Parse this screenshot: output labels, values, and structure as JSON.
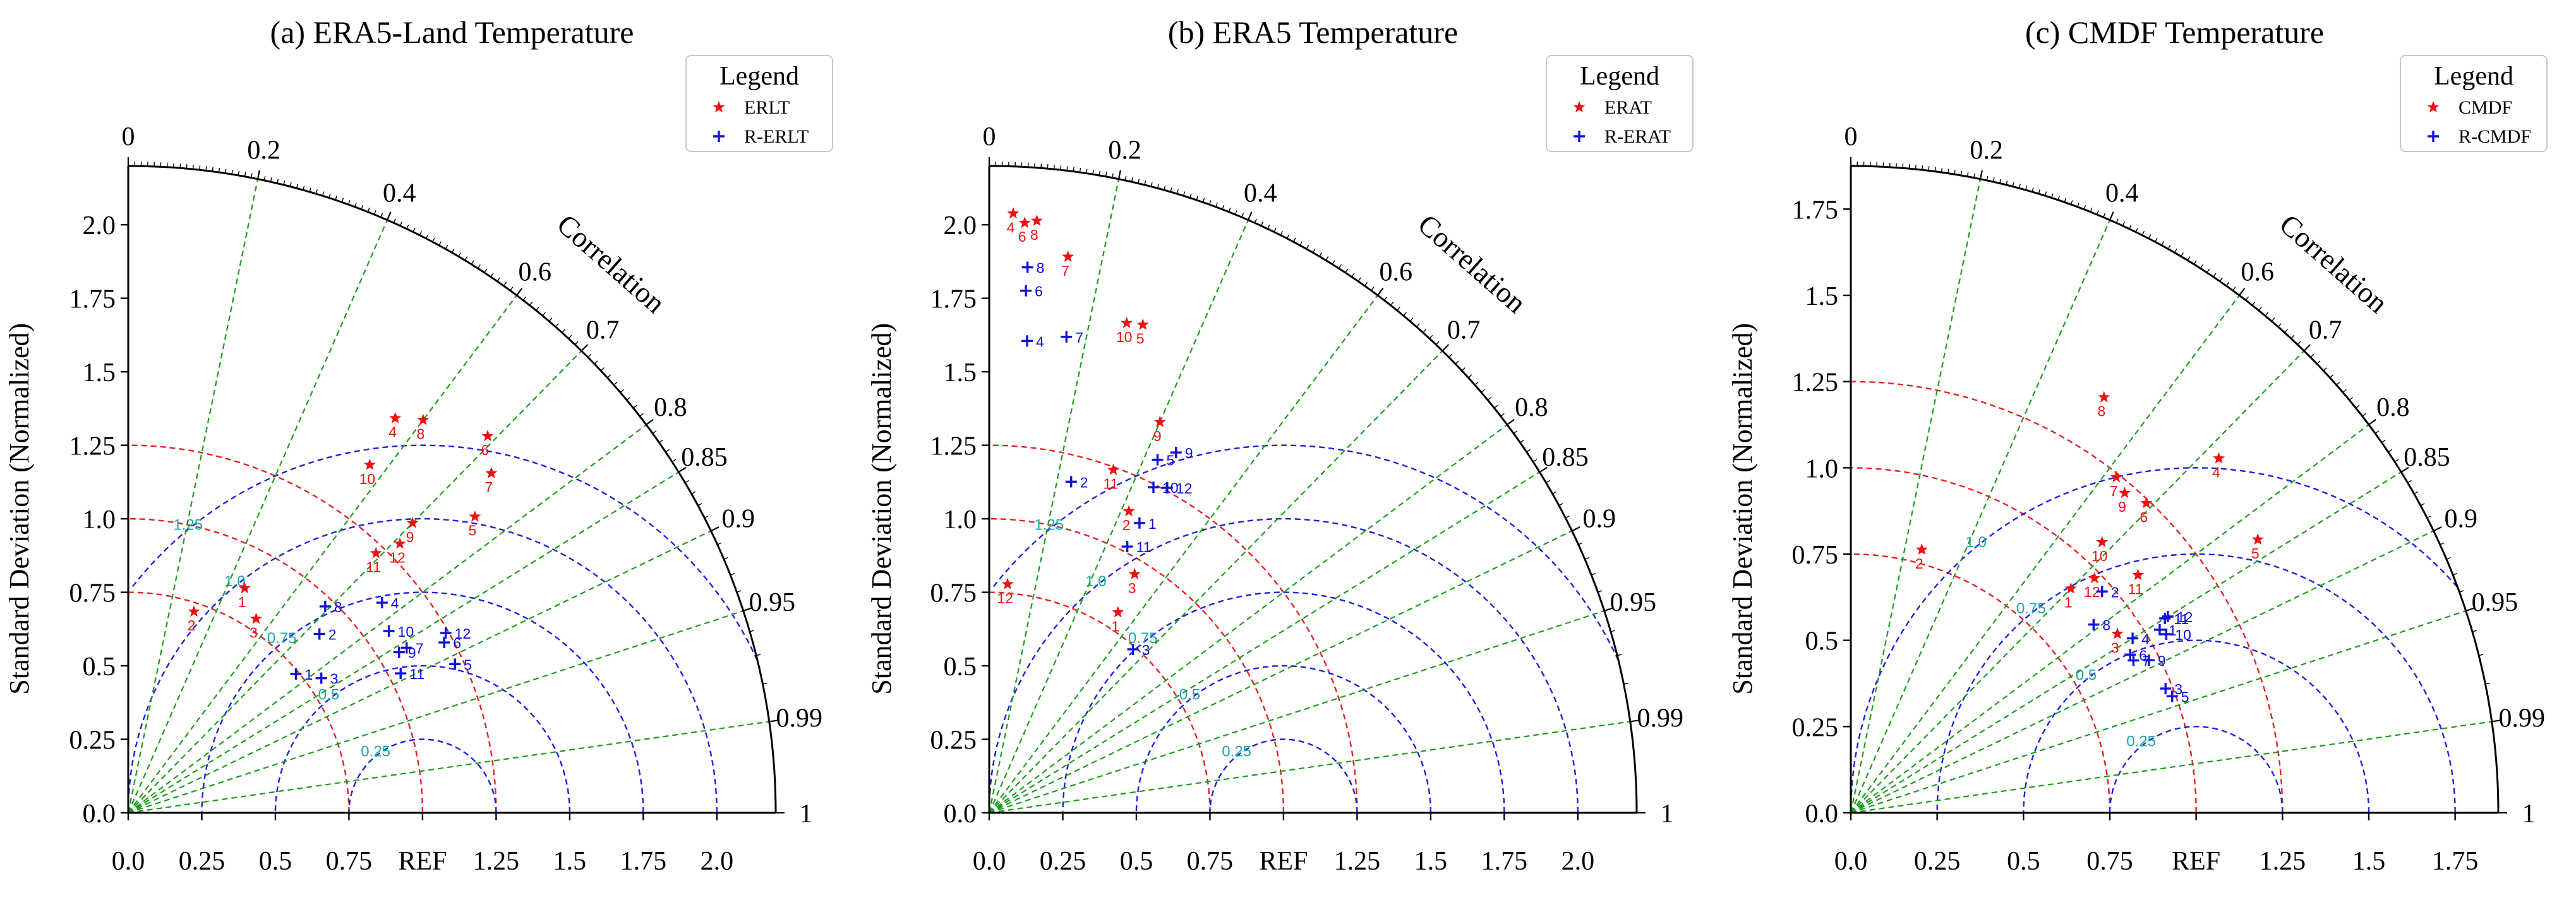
{
  "colors": {
    "axis": "#000000",
    "corr_line": "#1a9e1a",
    "std_arc": "#e52222",
    "rmsd_arc": "#1f1fe0",
    "rmsd_label": "#1aa8a8",
    "obs_marker": "#ee1111",
    "rev_marker": "#1010dd"
  },
  "chart_data": [
    {
      "type": "taylor",
      "title": "(a) ERA5-Land Temperature",
      "ylabel": "Standard Deviation (Normalized)",
      "corr_label": "Correlation",
      "xlim": [
        0,
        2.2
      ],
      "std_ticks": [
        "0.0",
        "0.25",
        "0.5",
        "0.75",
        "1.0",
        "1.25",
        "1.5",
        "1.75",
        "2.0"
      ],
      "x_ticks": [
        "0.0",
        "0.25",
        "0.5",
        "0.75",
        "REF",
        "1.25",
        "1.5",
        "1.75",
        "2.0"
      ],
      "corr_ticks": [
        "0",
        "0.2",
        "0.4",
        "0.6",
        "0.7",
        "0.8",
        "0.85",
        "0.9",
        "0.95",
        "0.99",
        "1"
      ],
      "std_arcs": [
        0.75,
        1.0,
        1.25
      ],
      "rmsd_levels": [
        0.25,
        0.5,
        0.75,
        1.0,
        1.25
      ],
      "rmsd_labels": [
        "0.25",
        "0.5",
        "0.75",
        "1.0",
        "1.25"
      ],
      "legend": {
        "title": "Legend",
        "items": [
          "ERLT",
          "R-ERLT"
        ]
      },
      "series": [
        {
          "name": "ERLT",
          "marker": "star",
          "points": [
            {
              "label": "1",
              "std": 0.86,
              "corr": 0.46
            },
            {
              "label": "2",
              "std": 0.72,
              "corr": 0.31
            },
            {
              "label": "3",
              "std": 0.79,
              "corr": 0.55
            },
            {
              "label": "4",
              "std": 1.62,
              "corr": 0.56
            },
            {
              "label": "5",
              "std": 1.55,
              "corr": 0.76
            },
            {
              "label": "6",
              "std": 1.77,
              "corr": 0.69
            },
            {
              "label": "7",
              "std": 1.69,
              "corr": 0.73
            },
            {
              "label": "8",
              "std": 1.67,
              "corr": 0.6
            },
            {
              "label": "9",
              "std": 1.38,
              "corr": 0.7
            },
            {
              "label": "10",
              "std": 1.44,
              "corr": 0.57
            },
            {
              "label": "11",
              "std": 1.22,
              "corr": 0.69
            },
            {
              "label": "12",
              "std": 1.3,
              "corr": 0.71
            }
          ]
        },
        {
          "name": "R-ERLT",
          "marker": "plus",
          "points": [
            {
              "label": "1",
              "std": 0.74,
              "corr": 0.77
            },
            {
              "label": "2",
              "std": 0.89,
              "corr": 0.73
            },
            {
              "label": "3",
              "std": 0.8,
              "corr": 0.82
            },
            {
              "label": "4",
              "std": 1.12,
              "corr": 0.77
            },
            {
              "label": "5",
              "std": 1.22,
              "corr": 0.91
            },
            {
              "label": "6",
              "std": 1.22,
              "corr": 0.88
            },
            {
              "label": "7",
              "std": 1.1,
              "corr": 0.86
            },
            {
              "label": "8",
              "std": 0.97,
              "corr": 0.69
            },
            {
              "label": "9",
              "std": 1.07,
              "corr": 0.86
            },
            {
              "label": "10",
              "std": 1.08,
              "corr": 0.82
            },
            {
              "label": "11",
              "std": 1.04,
              "corr": 0.89
            },
            {
              "label": "12",
              "std": 1.24,
              "corr": 0.87
            }
          ]
        }
      ]
    },
    {
      "type": "taylor",
      "title": "(b) ERA5 Temperature",
      "ylabel": "Standard Deviation (Normalized)",
      "corr_label": "Correlation",
      "xlim": [
        0,
        2.2
      ],
      "std_ticks": [
        "0.0",
        "0.25",
        "0.5",
        "0.75",
        "1.0",
        "1.25",
        "1.5",
        "1.75",
        "2.0"
      ],
      "x_ticks": [
        "0.0",
        "0.25",
        "0.5",
        "0.75",
        "REF",
        "1.25",
        "1.5",
        "1.75",
        "2.0"
      ],
      "corr_ticks": [
        "0",
        "0.2",
        "0.4",
        "0.6",
        "0.7",
        "0.8",
        "0.85",
        "0.9",
        "0.95",
        "0.99",
        "1"
      ],
      "std_arcs": [
        0.75,
        1.0,
        1.25
      ],
      "rmsd_levels": [
        0.25,
        0.5,
        0.75,
        1.0,
        1.25
      ],
      "rmsd_labels": [
        "0.25",
        "0.5",
        "0.75",
        "1.0",
        "1.25"
      ],
      "legend": {
        "title": "Legend",
        "items": [
          "ERAT",
          "R-ERAT"
        ]
      },
      "series": [
        {
          "name": "ERAT",
          "marker": "star",
          "points": [
            {
              "label": "1",
              "std": 0.81,
              "corr": 0.54
            },
            {
              "label": "2",
              "std": 1.13,
              "corr": 0.42
            },
            {
              "label": "3",
              "std": 0.95,
              "corr": 0.52
            },
            {
              "label": "4",
              "std": 2.04,
              "corr": 0.04
            },
            {
              "label": "5",
              "std": 1.74,
              "corr": 0.3
            },
            {
              "label": "6",
              "std": 2.01,
              "corr": 0.06
            },
            {
              "label": "7",
              "std": 1.91,
              "corr": 0.14
            },
            {
              "label": "8",
              "std": 2.02,
              "corr": 0.08
            },
            {
              "label": "9",
              "std": 1.45,
              "corr": 0.4
            },
            {
              "label": "10",
              "std": 1.73,
              "corr": 0.27
            },
            {
              "label": "11",
              "std": 1.24,
              "corr": 0.34
            },
            {
              "label": "12",
              "std": 0.78,
              "corr": 0.08
            }
          ]
        },
        {
          "name": "R-ERAT",
          "marker": "plus",
          "points": [
            {
              "label": "1",
              "std": 1.11,
              "corr": 0.46
            },
            {
              "label": "2",
              "std": 1.16,
              "corr": 0.24
            },
            {
              "label": "3",
              "std": 0.74,
              "corr": 0.66
            },
            {
              "label": "4",
              "std": 1.61,
              "corr": 0.08
            },
            {
              "label": "5",
              "std": 1.33,
              "corr": 0.43
            },
            {
              "label": "6",
              "std": 1.78,
              "corr": 0.07
            },
            {
              "label": "7",
              "std": 1.64,
              "corr": 0.16
            },
            {
              "label": "8",
              "std": 1.86,
              "corr": 0.07
            },
            {
              "label": "9",
              "std": 1.38,
              "corr": 0.46
            },
            {
              "label": "10",
              "std": 1.24,
              "corr": 0.45
            },
            {
              "label": "11",
              "std": 1.02,
              "corr": 0.46
            },
            {
              "label": "12",
              "std": 1.26,
              "corr": 0.48
            }
          ]
        }
      ]
    },
    {
      "type": "taylor",
      "title": "(c) CMDF Temperature",
      "ylabel": "Standard Deviation (Normalized)",
      "corr_label": "Correlation",
      "xlim": [
        0,
        1.875
      ],
      "std_ticks": [
        "0.0",
        "0.25",
        "0.5",
        "0.75",
        "1.0",
        "1.25",
        "1.5",
        "1.75"
      ],
      "x_ticks": [
        "0.0",
        "0.25",
        "0.5",
        "0.75",
        "REF",
        "1.25",
        "1.5",
        "1.75"
      ],
      "corr_ticks": [
        "0",
        "0.2",
        "0.4",
        "0.6",
        "0.7",
        "0.8",
        "0.85",
        "0.9",
        "0.95",
        "0.99",
        "1"
      ],
      "std_arcs": [
        0.75,
        1.0,
        1.25
      ],
      "rmsd_levels": [
        0.25,
        0.5,
        0.75,
        1.0
      ],
      "rmsd_labels": [
        "0.25",
        "0.5",
        "0.75",
        "1.0"
      ],
      "legend": {
        "title": "Legend",
        "items": [
          "CMDF",
          "R-CMDF"
        ]
      },
      "series": [
        {
          "name": "CMDF",
          "marker": "star",
          "points": [
            {
              "label": "1",
              "std": 0.91,
              "corr": 0.7
            },
            {
              "label": "2",
              "std": 0.79,
              "corr": 0.26
            },
            {
              "label": "3",
              "std": 0.93,
              "corr": 0.83
            },
            {
              "label": "4",
              "std": 1.48,
              "corr": 0.72
            },
            {
              "label": "5",
              "std": 1.42,
              "corr": 0.83
            },
            {
              "label": "6",
              "std": 1.24,
              "corr": 0.69
            },
            {
              "label": "7",
              "std": 1.24,
              "corr": 0.62
            },
            {
              "label": "8",
              "std": 1.41,
              "corr": 0.52
            },
            {
              "label": "9",
              "std": 1.22,
              "corr": 0.65
            },
            {
              "label": "10",
              "std": 1.07,
              "corr": 0.68
            },
            {
              "label": "11",
              "std": 1.08,
              "corr": 0.77
            },
            {
              "label": "12",
              "std": 0.98,
              "corr": 0.72
            }
          ]
        },
        {
          "name": "R-CMDF",
          "marker": "plus",
          "points": [
            {
              "label": "1",
              "std": 1.04,
              "corr": 0.86
            },
            {
              "label": "2",
              "std": 0.97,
              "corr": 0.75
            },
            {
              "label": "3",
              "std": 0.98,
              "corr": 0.93
            },
            {
              "label": "4",
              "std": 0.96,
              "corr": 0.85
            },
            {
              "label": "5",
              "std": 0.99,
              "corr": 0.94
            },
            {
              "label": "6",
              "std": 0.93,
              "corr": 0.87
            },
            {
              "label": "7",
              "std": 0.93,
              "corr": 0.88
            },
            {
              "label": "8",
              "std": 0.89,
              "corr": 0.79
            },
            {
              "label": "9",
              "std": 0.97,
              "corr": 0.89
            },
            {
              "label": "10",
              "std": 1.05,
              "corr": 0.87
            },
            {
              "label": "11",
              "std": 1.07,
              "corr": 0.85
            },
            {
              "label": "12",
              "std": 1.08,
              "corr": 0.85
            }
          ]
        }
      ]
    }
  ]
}
